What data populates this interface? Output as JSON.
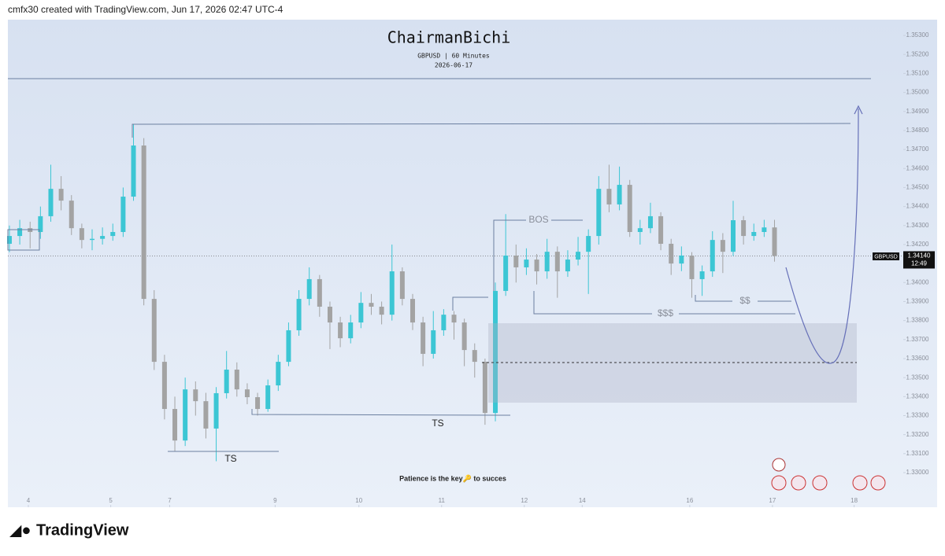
{
  "header": "cmfx30 created with TradingView.com, Jun 17, 2026 02:47 UTC-4",
  "chart_data": {
    "type": "candlestick",
    "title": "ChairmanBichi",
    "subtitle": "GBPUSD | 60 Minutes",
    "date": "2026-06-17",
    "note": "Patience is the key🔑 to succes",
    "up_color": "#3cc6d4",
    "down_color": "#a3a3a3",
    "open": [
      1.34204,
      1.34245,
      1.34286,
      1.34266,
      1.34349,
      1.34493,
      1.34431,
      1.34286,
      1.34224,
      1.3423,
      1.34245,
      1.34266,
      1.34452,
      1.34721,
      1.33914,
      1.33583,
      1.33335,
      1.33169,
      1.33438,
      1.33376,
      1.33232,
      1.33418,
      1.33542,
      1.33438,
      1.33397,
      1.33335,
      1.33459,
      1.33583,
      1.33749,
      1.33914,
      1.34018,
      1.33873,
      1.3379,
      1.33707,
      1.3379,
      1.33893,
      1.33873,
      1.33831,
      1.34059,
      1.33914,
      1.3379,
      1.33625,
      1.33749,
      1.33831,
      1.3379,
      1.33645,
      1.33583,
      1.33314,
      1.33956,
      1.34142,
      1.3408,
      1.34121,
      1.34059,
      1.34162,
      1.34059,
      1.34121,
      1.34162,
      1.34245,
      1.34493,
      1.34411,
      1.34514,
      1.34266,
      1.34286,
      1.34349,
      1.34204,
      1.341,
      1.34142,
      1.34018,
      1.34059,
      1.34224,
      1.34162,
      1.34328,
      1.34245,
      1.34266,
      1.3429
    ],
    "high": [
      1.343,
      1.3433,
      1.3432,
      1.344,
      1.3462,
      1.3456,
      1.3446,
      1.3431,
      1.3428,
      1.3429,
      1.3431,
      1.345,
      1.34833,
      1.3476,
      1.3396,
      1.3362,
      1.334,
      1.335,
      1.3348,
      1.3342,
      1.3345,
      1.3364,
      1.3358,
      1.3347,
      1.3342,
      1.3349,
      1.3362,
      1.3379,
      1.3396,
      1.3408,
      1.3404,
      1.339,
      1.3382,
      1.3383,
      1.3395,
      1.3394,
      1.339,
      1.342,
      1.3408,
      1.3394,
      1.3382,
      1.3385,
      1.3386,
      1.3385,
      1.3381,
      1.3368,
      1.336,
      1.34,
      1.3436,
      1.342,
      1.3418,
      1.3415,
      1.3423,
      1.3419,
      1.3417,
      1.3424,
      1.3428,
      1.3456,
      1.3462,
      1.3461,
      1.3454,
      1.3433,
      1.3442,
      1.3437,
      1.3423,
      1.3419,
      1.3416,
      1.3409,
      1.3427,
      1.3426,
      1.3443,
      1.3435,
      1.3431,
      1.3433,
      1.3433
    ],
    "low": [
      1.3416,
      1.342,
      1.3418,
      1.3423,
      1.3432,
      1.3438,
      1.3425,
      1.3418,
      1.3417,
      1.342,
      1.3422,
      1.3424,
      1.3443,
      1.3388,
      1.3354,
      1.3328,
      1.33112,
      1.3314,
      1.333,
      1.3318,
      1.3306,
      1.3339,
      1.334,
      1.3336,
      1.333,
      1.3332,
      1.3343,
      1.3356,
      1.3372,
      1.3388,
      1.3382,
      1.3365,
      1.3366,
      1.3368,
      1.3376,
      1.3383,
      1.3378,
      1.338,
      1.3388,
      1.3375,
      1.3356,
      1.336,
      1.3372,
      1.337,
      1.3356,
      1.335,
      1.33252,
      1.3327,
      1.3393,
      1.34,
      1.3404,
      1.3399,
      1.3402,
      1.3392,
      1.3403,
      1.3409,
      1.3394,
      1.342,
      1.3437,
      1.3438,
      1.3424,
      1.342,
      1.3426,
      1.3417,
      1.3404,
      1.3406,
      1.3392,
      1.3393,
      1.3403,
      1.3405,
      1.3414,
      1.342,
      1.3422,
      1.3424,
      1.3411
    ],
    "close": [
      1.34245,
      1.34286,
      1.34266,
      1.34349,
      1.34493,
      1.34431,
      1.34286,
      1.34224,
      1.3423,
      1.34245,
      1.34266,
      1.34452,
      1.34721,
      1.33914,
      1.33583,
      1.33335,
      1.33169,
      1.33438,
      1.33376,
      1.33232,
      1.33418,
      1.33542,
      1.33438,
      1.33397,
      1.33335,
      1.33459,
      1.33583,
      1.33749,
      1.33914,
      1.34018,
      1.33873,
      1.3379,
      1.33707,
      1.3379,
      1.33893,
      1.33873,
      1.33831,
      1.34059,
      1.33914,
      1.3379,
      1.33625,
      1.33749,
      1.33831,
      1.3379,
      1.33645,
      1.33583,
      1.33314,
      1.33956,
      1.34142,
      1.3408,
      1.34121,
      1.34059,
      1.34162,
      1.34059,
      1.34121,
      1.34162,
      1.34245,
      1.34493,
      1.34411,
      1.34514,
      1.34266,
      1.34286,
      1.34349,
      1.34204,
      1.341,
      1.34142,
      1.34018,
      1.34059,
      1.34224,
      1.34162,
      1.34328,
      1.34245,
      1.34266,
      1.3429,
      1.3414
    ],
    "xlim": [
      -0.15,
      86.3
    ],
    "xticks": [
      {
        "value": 1.83,
        "label": "4"
      },
      {
        "value": 9.8,
        "label": "5"
      },
      {
        "value": 15.5,
        "label": "7"
      },
      {
        "value": 25.7,
        "label": "9"
      },
      {
        "value": 33.8,
        "label": "10"
      },
      {
        "value": 41.8,
        "label": "11"
      },
      {
        "value": 49.8,
        "label": "12"
      },
      {
        "value": 55.4,
        "label": "14"
      },
      {
        "value": 65.8,
        "label": "16"
      },
      {
        "value": 73.8,
        "label": "17"
      },
      {
        "value": 81.7,
        "label": "18"
      }
    ],
    "ylim": [
      1.32818,
      1.35383
    ],
    "yticks": [
      {
        "value": 1.33,
        "label": "1.33000"
      },
      {
        "value": 1.331,
        "label": "1.33100"
      },
      {
        "value": 1.332,
        "label": "1.33200"
      },
      {
        "value": 1.333,
        "label": "1.33300"
      },
      {
        "value": 1.334,
        "label": "1.33400"
      },
      {
        "value": 1.335,
        "label": "1.33500"
      },
      {
        "value": 1.336,
        "label": "1.33600"
      },
      {
        "value": 1.337,
        "label": "1.33700"
      },
      {
        "value": 1.338,
        "label": "1.33800"
      },
      {
        "value": 1.339,
        "label": "1.33900"
      },
      {
        "value": 1.34,
        "label": "1.34000"
      },
      {
        "value": 1.341,
        "label": "1.34100"
      },
      {
        "value": 1.342,
        "label": "1.34200"
      },
      {
        "value": 1.343,
        "label": "1.34300"
      },
      {
        "value": 1.344,
        "label": "1.34400"
      },
      {
        "value": 1.345,
        "label": "1.34500"
      },
      {
        "value": 1.346,
        "label": "1.34600"
      },
      {
        "value": 1.347,
        "label": "1.34700"
      },
      {
        "value": 1.348,
        "label": "1.34800"
      },
      {
        "value": 1.349,
        "label": "1.34900"
      },
      {
        "value": 1.35,
        "label": "1.35000"
      },
      {
        "value": 1.351,
        "label": "1.35100"
      },
      {
        "value": 1.352,
        "label": "1.35200"
      },
      {
        "value": 1.353,
        "label": "1.35300"
      }
    ],
    "price_label": {
      "symbol": "GBPUSD",
      "price": {
        "value": 1.3414,
        "label": "1.34140"
      },
      "countdown": "12:49"
    },
    "annotations": {
      "bos": "BOS",
      "liquidity_low": "$$$",
      "liquidity_high": "$$",
      "ts_left": "TS",
      "ts_right": "TS"
    }
  },
  "footer": {
    "brand": "TradingView"
  }
}
